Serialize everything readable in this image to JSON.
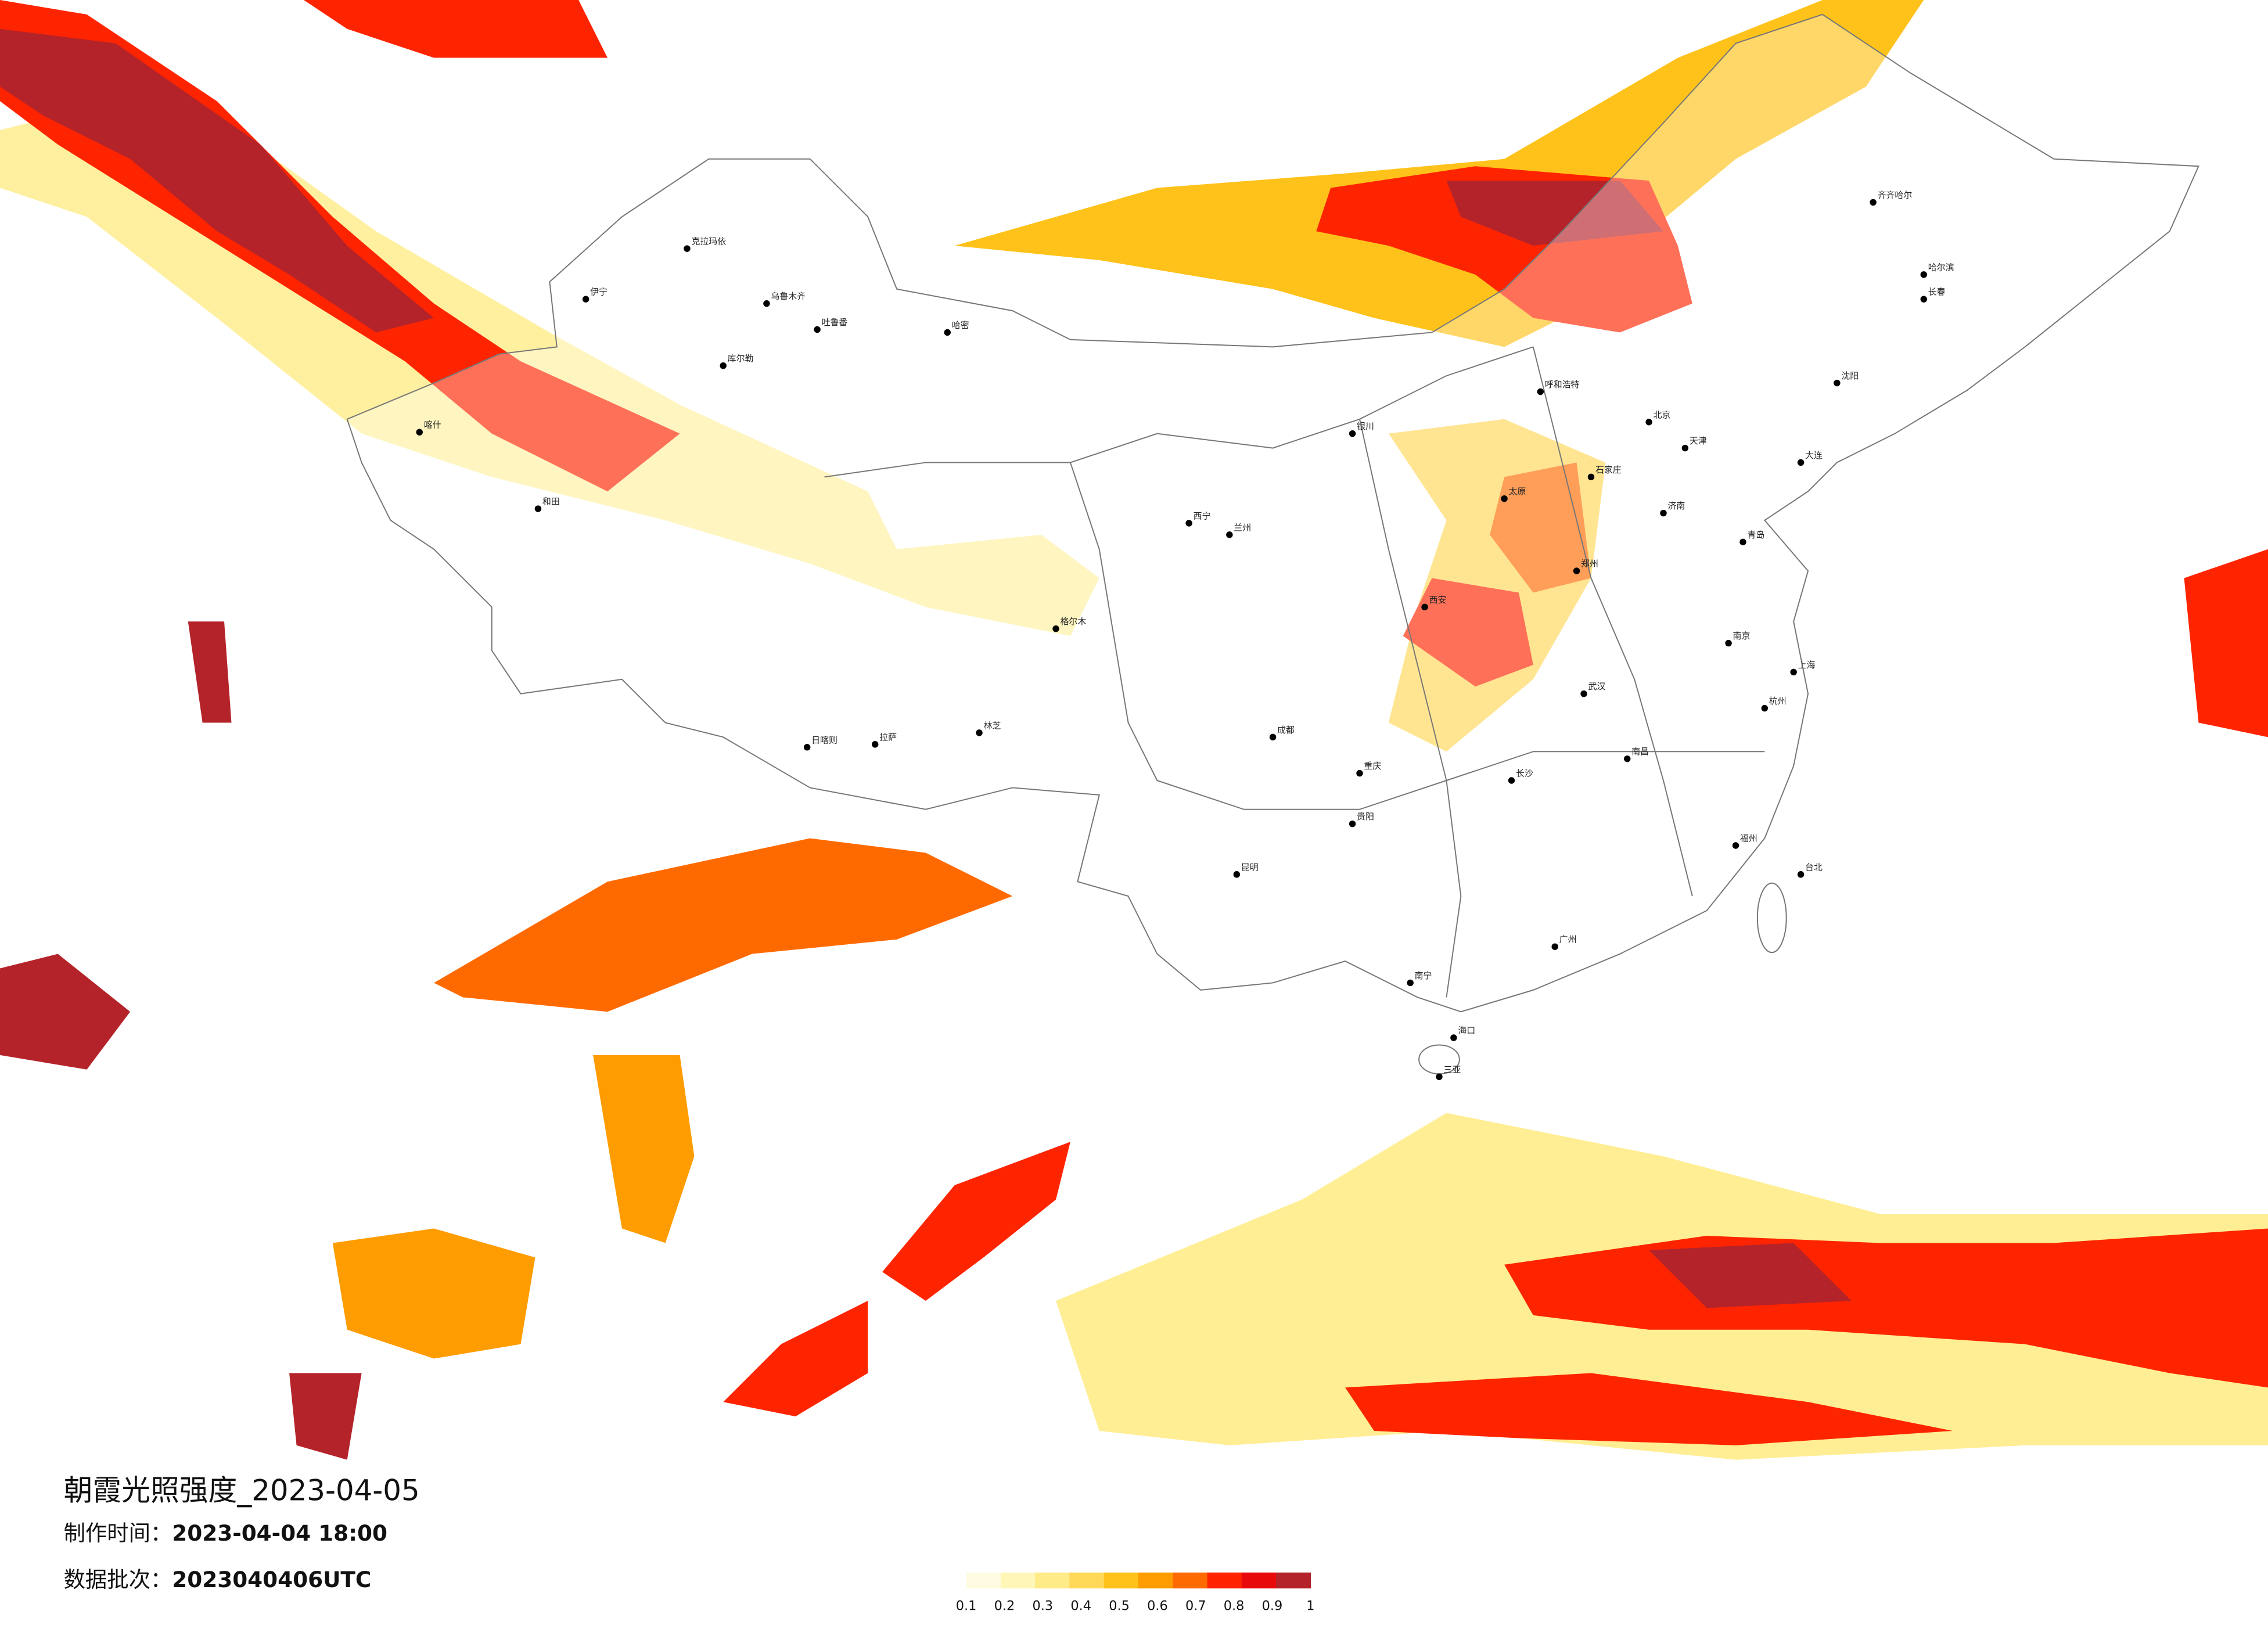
{
  "title": "朝霞光照强度_2023-04-05",
  "production_time": {
    "label": "制作时间：",
    "value": "2023-04-04 18:00"
  },
  "data_batch": {
    "label": "数据批次：",
    "value": "2023040406UTC"
  },
  "map_legend": {
    "values": [
      0.1,
      0.2,
      0.3,
      0.4,
      0.5,
      0.6,
      0.7,
      0.8,
      0.9,
      1
    ],
    "colors": [
      "#fffbe0",
      "#fff6b8",
      "#ffec88",
      "#ffd858",
      "#ffc21a",
      "#ff9c00",
      "#ff6a00",
      "#ff2400",
      "#e80a0a",
      "#b5232a"
    ]
  },
  "cities": [
    "克拉玛依",
    "乌鲁木齐",
    "吐鲁番",
    "哈密",
    "库尔勒",
    "伊宁",
    "喀什",
    "和田",
    "日喀则",
    "拉萨",
    "林芝",
    "格尔木",
    "西宁",
    "兰州",
    "银川",
    "呼和浩特",
    "北京",
    "天津",
    "石家庄",
    "太原",
    "西安",
    "郑州",
    "济南",
    "成都",
    "重庆",
    "武汉",
    "长沙",
    "南昌",
    "南京",
    "上海",
    "杭州",
    "福州",
    "广州",
    "南宁",
    "昆明",
    "贵阳",
    "海口",
    "三亚",
    "台北",
    "哈尔滨",
    "长春",
    "沈阳",
    "齐齐哈尔",
    "大连",
    "青岛"
  ]
}
